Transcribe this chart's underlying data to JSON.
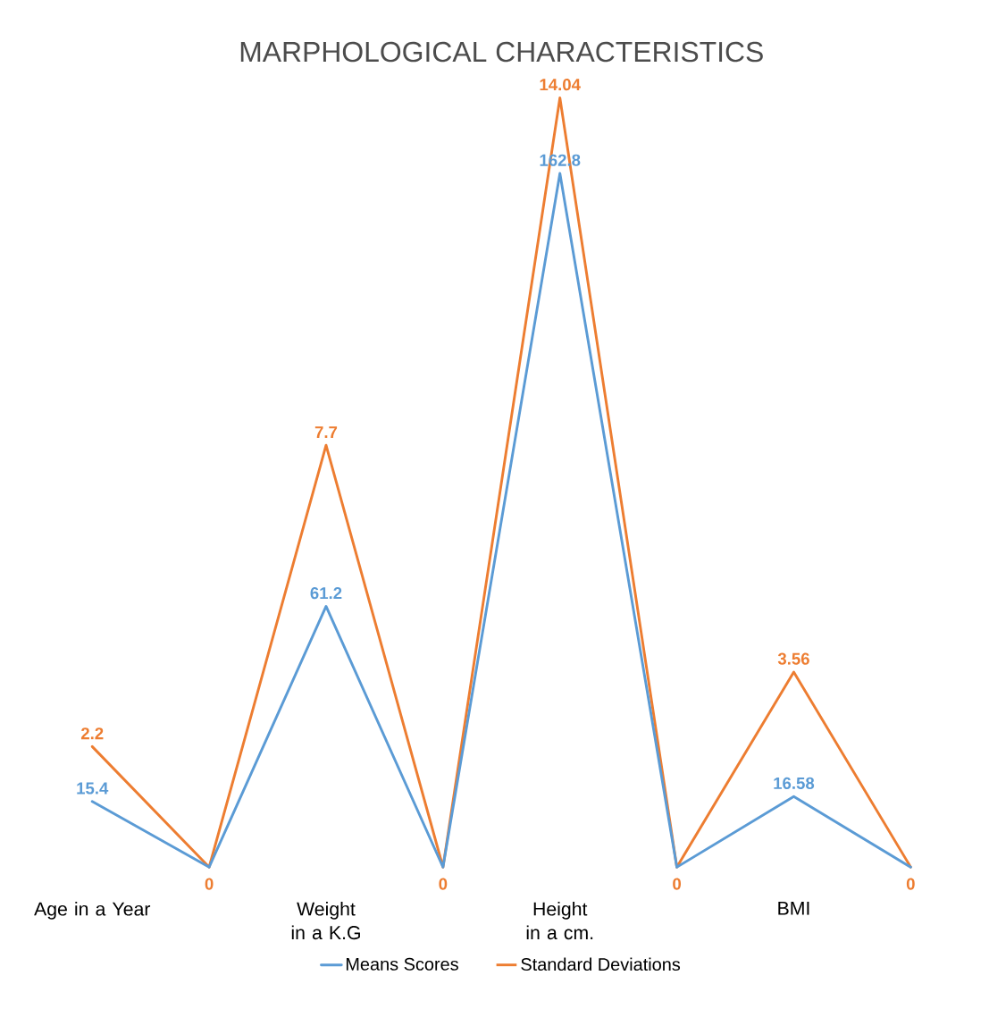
{
  "chart_data": {
    "type": "line",
    "title": "MARPHOLOGICAL CHARACTERISTICS",
    "categories": [
      "Age in a Year",
      null,
      "Weight in a K.G",
      null,
      "Height in a cm.",
      null,
      "BMI",
      null
    ],
    "series": [
      {
        "name": "Means Scores",
        "color": "#5b9bd5",
        "values": [
          15.4,
          0,
          61.2,
          0,
          162.8,
          0,
          16.58,
          0
        ],
        "value_labels": [
          "15.4",
          null,
          "61.2",
          null,
          "162.8",
          null,
          "16.58",
          null
        ]
      },
      {
        "name": "Standard Deviations",
        "color": "#ed7d31",
        "axis": "y2",
        "values": [
          2.2,
          0,
          7.7,
          0,
          14.04,
          0,
          3.56,
          0
        ],
        "value_labels": [
          "2.2",
          "0",
          "7.7",
          "0",
          "14.04",
          "0",
          "3.56",
          "0"
        ]
      }
    ],
    "legend": "bottom",
    "marker": "none",
    "line_style": "solid"
  }
}
